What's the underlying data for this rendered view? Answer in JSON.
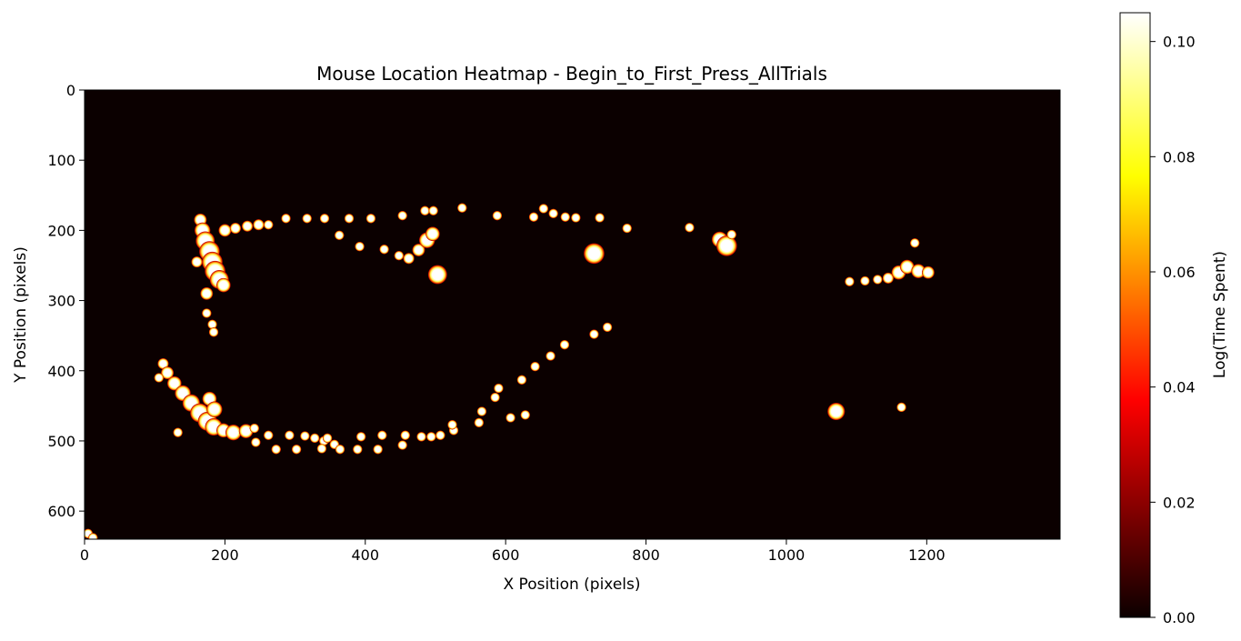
{
  "chart_data": {
    "type": "heatmap",
    "title": "Mouse Location Heatmap - Begin_to_First_Press_AllTrials",
    "xlabel": "X Position (pixels)",
    "ylabel": "Y Position (pixels)",
    "xlim": [
      0,
      1390
    ],
    "ylim": [
      640,
      0
    ],
    "x_ticks": [
      0,
      200,
      400,
      600,
      800,
      1000,
      1200
    ],
    "y_ticks": [
      0,
      100,
      200,
      300,
      400,
      500,
      600
    ],
    "colormap": "hot",
    "background_color": "#0b0000",
    "colorbar": {
      "label": "Log(Time Spent)",
      "range": [
        0,
        0.105
      ],
      "ticks": [
        "0.00",
        "0.02",
        "0.04",
        "0.06",
        "0.08",
        "0.10"
      ],
      "tick_values": [
        0,
        0.02,
        0.04,
        0.06,
        0.08,
        0.1
      ]
    },
    "grid": false,
    "hotspots": [
      {
        "x": 165,
        "y": 185,
        "r": 8
      },
      {
        "x": 168,
        "y": 200,
        "r": 10
      },
      {
        "x": 172,
        "y": 215,
        "r": 12
      },
      {
        "x": 178,
        "y": 230,
        "r": 13
      },
      {
        "x": 182,
        "y": 245,
        "r": 13
      },
      {
        "x": 186,
        "y": 258,
        "r": 13
      },
      {
        "x": 192,
        "y": 270,
        "r": 12
      },
      {
        "x": 198,
        "y": 278,
        "r": 9
      },
      {
        "x": 174,
        "y": 290,
        "r": 8
      },
      {
        "x": 160,
        "y": 245,
        "r": 7
      },
      {
        "x": 200,
        "y": 200,
        "r": 8
      },
      {
        "x": 215,
        "y": 197,
        "r": 7
      },
      {
        "x": 232,
        "y": 194,
        "r": 7
      },
      {
        "x": 248,
        "y": 192,
        "r": 7
      },
      {
        "x": 262,
        "y": 192,
        "r": 6
      },
      {
        "x": 174,
        "y": 318,
        "r": 6
      },
      {
        "x": 182,
        "y": 334,
        "r": 6
      },
      {
        "x": 184,
        "y": 345,
        "r": 6
      },
      {
        "x": 287,
        "y": 183,
        "r": 6
      },
      {
        "x": 317,
        "y": 183,
        "r": 6
      },
      {
        "x": 342,
        "y": 183,
        "r": 6
      },
      {
        "x": 377,
        "y": 183,
        "r": 6
      },
      {
        "x": 408,
        "y": 183,
        "r": 6
      },
      {
        "x": 453,
        "y": 179,
        "r": 6
      },
      {
        "x": 485,
        "y": 172,
        "r": 6
      },
      {
        "x": 497,
        "y": 172,
        "r": 6
      },
      {
        "x": 538,
        "y": 168,
        "r": 6
      },
      {
        "x": 588,
        "y": 179,
        "r": 6
      },
      {
        "x": 640,
        "y": 181,
        "r": 6
      },
      {
        "x": 654,
        "y": 169,
        "r": 6
      },
      {
        "x": 668,
        "y": 176,
        "r": 6
      },
      {
        "x": 685,
        "y": 181,
        "r": 6
      },
      {
        "x": 700,
        "y": 182,
        "r": 6
      },
      {
        "x": 734,
        "y": 182,
        "r": 6
      },
      {
        "x": 773,
        "y": 197,
        "r": 6
      },
      {
        "x": 862,
        "y": 196,
        "r": 6
      },
      {
        "x": 363,
        "y": 207,
        "r": 6
      },
      {
        "x": 392,
        "y": 223,
        "r": 6
      },
      {
        "x": 427,
        "y": 227,
        "r": 6
      },
      {
        "x": 448,
        "y": 236,
        "r": 6
      },
      {
        "x": 462,
        "y": 240,
        "r": 7
      },
      {
        "x": 476,
        "y": 228,
        "r": 8
      },
      {
        "x": 488,
        "y": 214,
        "r": 10
      },
      {
        "x": 496,
        "y": 205,
        "r": 9
      },
      {
        "x": 503,
        "y": 263,
        "r": 12
      },
      {
        "x": 726,
        "y": 233,
        "r": 13
      },
      {
        "x": 905,
        "y": 213,
        "r": 10
      },
      {
        "x": 915,
        "y": 222,
        "r": 13
      },
      {
        "x": 922,
        "y": 206,
        "r": 6
      },
      {
        "x": 1090,
        "y": 273,
        "r": 6
      },
      {
        "x": 1112,
        "y": 272,
        "r": 6
      },
      {
        "x": 1130,
        "y": 270,
        "r": 6
      },
      {
        "x": 1145,
        "y": 268,
        "r": 7
      },
      {
        "x": 1160,
        "y": 260,
        "r": 9
      },
      {
        "x": 1172,
        "y": 252,
        "r": 9
      },
      {
        "x": 1188,
        "y": 258,
        "r": 9
      },
      {
        "x": 1202,
        "y": 260,
        "r": 8
      },
      {
        "x": 1183,
        "y": 218,
        "r": 6
      },
      {
        "x": 745,
        "y": 338,
        "r": 6
      },
      {
        "x": 726,
        "y": 348,
        "r": 6
      },
      {
        "x": 684,
        "y": 363,
        "r": 6
      },
      {
        "x": 664,
        "y": 379,
        "r": 6
      },
      {
        "x": 642,
        "y": 394,
        "r": 6
      },
      {
        "x": 623,
        "y": 413,
        "r": 6
      },
      {
        "x": 590,
        "y": 425,
        "r": 6
      },
      {
        "x": 585,
        "y": 438,
        "r": 6
      },
      {
        "x": 566,
        "y": 458,
        "r": 6
      },
      {
        "x": 562,
        "y": 474,
        "r": 6
      },
      {
        "x": 607,
        "y": 467,
        "r": 6
      },
      {
        "x": 628,
        "y": 463,
        "r": 6
      },
      {
        "x": 112,
        "y": 390,
        "r": 7
      },
      {
        "x": 118,
        "y": 403,
        "r": 8
      },
      {
        "x": 128,
        "y": 418,
        "r": 9
      },
      {
        "x": 140,
        "y": 432,
        "r": 10
      },
      {
        "x": 152,
        "y": 446,
        "r": 11
      },
      {
        "x": 164,
        "y": 460,
        "r": 12
      },
      {
        "x": 175,
        "y": 472,
        "r": 12
      },
      {
        "x": 184,
        "y": 480,
        "r": 11
      },
      {
        "x": 178,
        "y": 440,
        "r": 9
      },
      {
        "x": 185,
        "y": 455,
        "r": 10
      },
      {
        "x": 198,
        "y": 485,
        "r": 9
      },
      {
        "x": 212,
        "y": 488,
        "r": 10
      },
      {
        "x": 230,
        "y": 486,
        "r": 9
      },
      {
        "x": 106,
        "y": 410,
        "r": 6
      },
      {
        "x": 133,
        "y": 488,
        "r": 6
      },
      {
        "x": 242,
        "y": 482,
        "r": 6
      },
      {
        "x": 244,
        "y": 502,
        "r": 6
      },
      {
        "x": 262,
        "y": 492,
        "r": 6
      },
      {
        "x": 273,
        "y": 512,
        "r": 6
      },
      {
        "x": 292,
        "y": 492,
        "r": 6
      },
      {
        "x": 302,
        "y": 512,
        "r": 6
      },
      {
        "x": 314,
        "y": 493,
        "r": 6
      },
      {
        "x": 328,
        "y": 496,
        "r": 6
      },
      {
        "x": 341,
        "y": 500,
        "r": 6
      },
      {
        "x": 346,
        "y": 496,
        "r": 6
      },
      {
        "x": 356,
        "y": 505,
        "r": 6
      },
      {
        "x": 338,
        "y": 511,
        "r": 6
      },
      {
        "x": 364,
        "y": 512,
        "r": 6
      },
      {
        "x": 389,
        "y": 512,
        "r": 6
      },
      {
        "x": 394,
        "y": 494,
        "r": 6
      },
      {
        "x": 418,
        "y": 512,
        "r": 6
      },
      {
        "x": 424,
        "y": 492,
        "r": 6
      },
      {
        "x": 453,
        "y": 506,
        "r": 6
      },
      {
        "x": 457,
        "y": 492,
        "r": 6
      },
      {
        "x": 480,
        "y": 494,
        "r": 6
      },
      {
        "x": 494,
        "y": 494,
        "r": 6
      },
      {
        "x": 507,
        "y": 492,
        "r": 6
      },
      {
        "x": 526,
        "y": 485,
        "r": 6
      },
      {
        "x": 524,
        "y": 477,
        "r": 6
      },
      {
        "x": 1071,
        "y": 458,
        "r": 11
      },
      {
        "x": 1164,
        "y": 452,
        "r": 6
      },
      {
        "x": 5,
        "y": 632,
        "r": 6
      },
      {
        "x": 12,
        "y": 638,
        "r": 6
      }
    ]
  }
}
